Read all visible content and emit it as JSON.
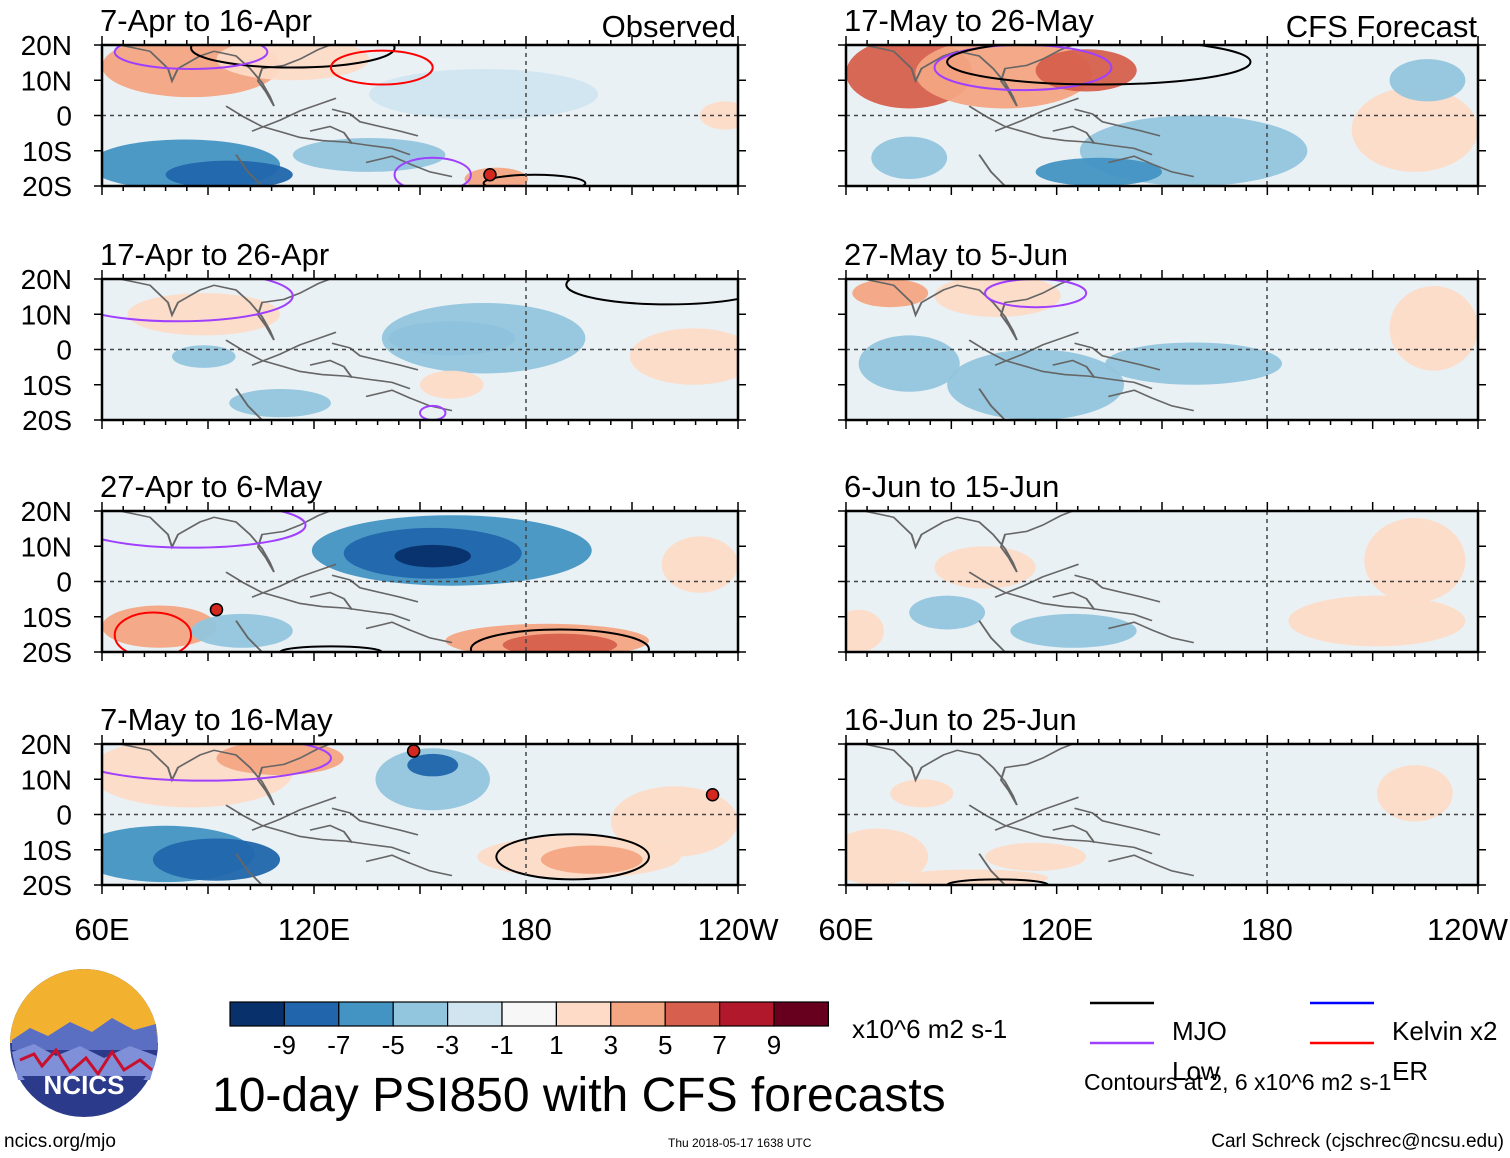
{
  "figure": {
    "title": "10-day PSI850 with CFS forecasts",
    "units": "x10^6 m2 s-1",
    "contour_note": "Contours at 2, 6 x10^6 m2 s-1",
    "site": "ncics.org/mjo",
    "timestamp": "Thu 2018-05-17 1638 UTC",
    "author": "Carl Schreck (cjschrec@ncsu.edu)",
    "logo_text": "NCICS",
    "observed_label": "Observed",
    "forecast_label": "CFS Forecast"
  },
  "axes": {
    "lat_labels": [
      "20N",
      "10N",
      "0",
      "10S",
      "20S"
    ],
    "lon_labels": [
      "60E",
      "120E",
      "180",
      "120W"
    ]
  },
  "colorbar": {
    "tick_labels": [
      "-9",
      "-7",
      "-5",
      "-3",
      "-1",
      "1",
      "3",
      "5",
      "7",
      "9"
    ],
    "colors": [
      "#08306b",
      "#2166ac",
      "#4393c3",
      "#92c5de",
      "#d1e5f0",
      "#f7f7f7",
      "#fddbc7",
      "#f4a582",
      "#d6604d",
      "#b2182b",
      "#67001f"
    ]
  },
  "legend": [
    {
      "name": "MJO",
      "color": "#000000"
    },
    {
      "name": "Kelvin x2",
      "color": "#0000ff"
    },
    {
      "name": "Low",
      "color": "#a040ff"
    },
    {
      "name": "ER",
      "color": "#ff0000"
    }
  ],
  "panels": [
    {
      "title": "7-Apr to 16-Apr"
    },
    {
      "title": "17-Apr to 26-Apr"
    },
    {
      "title": "27-Apr to 6-May"
    },
    {
      "title": "7-May to 16-May"
    },
    {
      "title": "17-May to 26-May"
    },
    {
      "title": "27-May to 5-Jun"
    },
    {
      "title": "6-Jun to 15-Jun"
    },
    {
      "title": "16-Jun to 25-Jun"
    }
  ]
}
